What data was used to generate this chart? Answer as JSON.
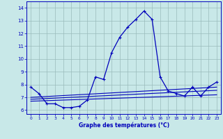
{
  "xlabel": "Graphe des températures (°C)",
  "xlim": [
    -0.5,
    23.5
  ],
  "ylim": [
    5.7,
    14.5
  ],
  "yticks": [
    6,
    7,
    8,
    9,
    10,
    11,
    12,
    13,
    14
  ],
  "xticks": [
    0,
    1,
    2,
    3,
    4,
    5,
    6,
    7,
    8,
    9,
    10,
    11,
    12,
    13,
    14,
    15,
    16,
    17,
    18,
    19,
    20,
    21,
    22,
    23
  ],
  "bg_color": "#c8e8e8",
  "line_color": "#0000bb",
  "grid_color": "#99bbbb",
  "line1_x": [
    0,
    1,
    2,
    3,
    4,
    5,
    6,
    7,
    8,
    9,
    10,
    11,
    12,
    13,
    14,
    15,
    16,
    17,
    18,
    19,
    20,
    21,
    22,
    23
  ],
  "line1_y": [
    7.8,
    7.3,
    6.5,
    6.5,
    6.2,
    6.2,
    6.3,
    6.8,
    8.6,
    8.4,
    10.5,
    11.7,
    12.5,
    13.1,
    13.75,
    13.1,
    8.6,
    7.5,
    7.3,
    7.1,
    7.8,
    7.1,
    7.8,
    8.2
  ],
  "line2_x": [
    0,
    23
  ],
  "line2_y": [
    7.0,
    7.8
  ],
  "line3_x": [
    0,
    23
  ],
  "line3_y": [
    6.85,
    7.55
  ],
  "line4_x": [
    0,
    23
  ],
  "line4_y": [
    6.7,
    7.2
  ]
}
